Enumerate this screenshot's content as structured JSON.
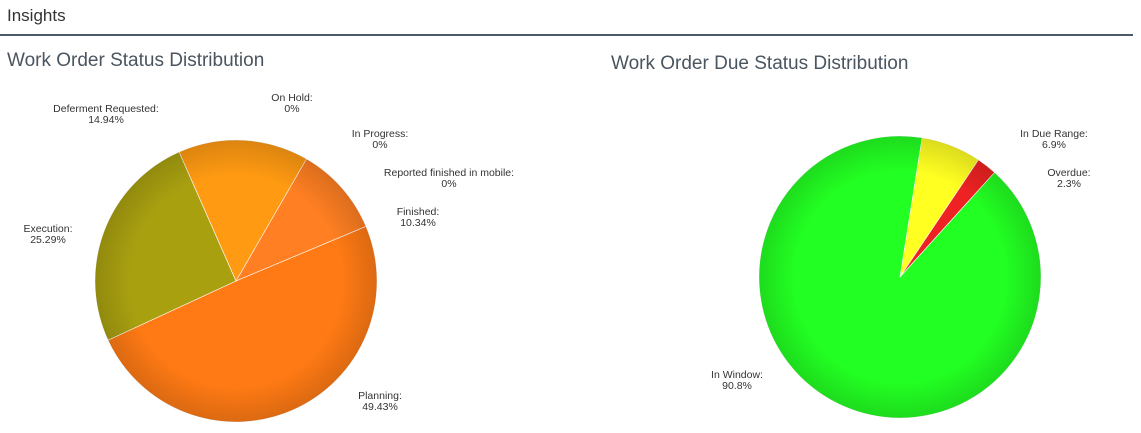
{
  "header": {
    "title": "Insights"
  },
  "chart_data": [
    {
      "type": "pie",
      "title": "Work Order Status Distribution",
      "slices": [
        {
          "name": "On Hold",
          "value": 0,
          "display": "0%",
          "color": "#ff9a1a"
        },
        {
          "name": "In Progress",
          "value": 0,
          "display": "0%",
          "color": "#ff8a24"
        },
        {
          "name": "Reported finished in mobile",
          "value": 0,
          "display": "0%",
          "color": "#ff8a24"
        },
        {
          "name": "Finished",
          "value": 10.34,
          "display": "10.34%",
          "color": "#ff7f22"
        },
        {
          "name": "Planning",
          "value": 49.43,
          "display": "49.43%",
          "color": "#ff7a14"
        },
        {
          "name": "Execution",
          "value": 25.29,
          "display": "25.29%",
          "color": "#a9a010"
        },
        {
          "name": "Deferment Requested",
          "value": 14.94,
          "display": "14.94%",
          "color": "#ff9a12"
        }
      ]
    },
    {
      "type": "pie",
      "title": "Work Order Due Status Distribution",
      "slices": [
        {
          "name": "In Due Range",
          "value": 6.9,
          "display": "6.9%",
          "color": "#ffff22"
        },
        {
          "name": "Overdue",
          "value": 2.3,
          "display": "2.3%",
          "color": "#ee2222"
        },
        {
          "name": "In Window",
          "value": 90.8,
          "display": "90.8%",
          "color": "#22ff22"
        }
      ]
    }
  ]
}
